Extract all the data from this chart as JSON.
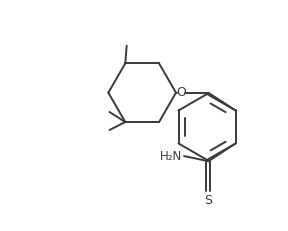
{
  "bg_color": "#ffffff",
  "line_color": "#3a3a3a",
  "line_width": 1.4,
  "fig_width": 2.88,
  "fig_height": 2.31,
  "dpi": 100,
  "xlim": [
    0,
    10
  ],
  "ylim": [
    0,
    8
  ]
}
